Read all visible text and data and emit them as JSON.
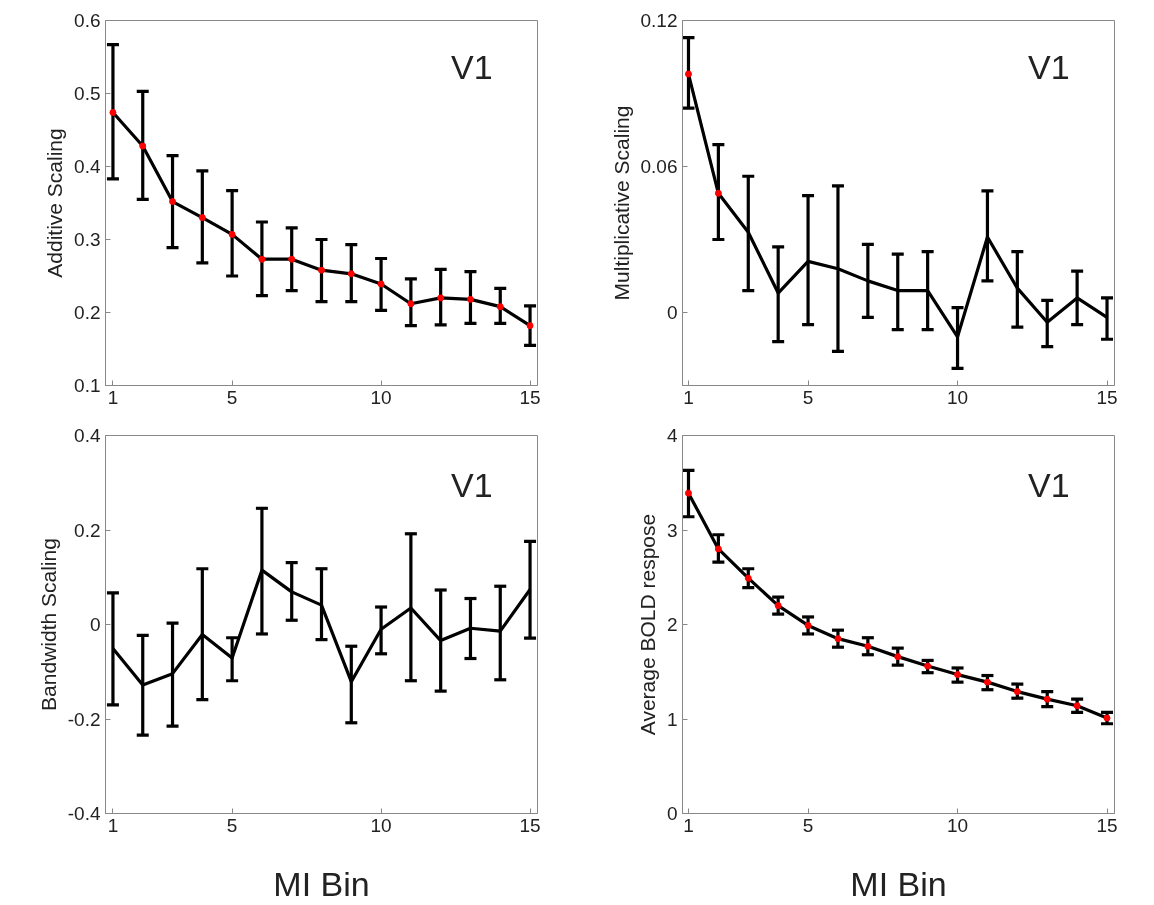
{
  "chart_data": [
    {
      "type": "line",
      "ylabel": "Additive Scaling",
      "annotations": [
        "V1"
      ],
      "x": [
        1,
        2,
        3,
        4,
        5,
        6,
        7,
        8,
        9,
        10,
        11,
        12,
        13,
        14,
        15
      ],
      "xlim": [
        0.75,
        15.25
      ],
      "xticks": [
        1,
        5,
        10,
        15
      ],
      "ylim": [
        0.1,
        0.6
      ],
      "yticks": [
        0.1,
        0.2,
        0.3,
        0.4,
        0.5,
        0.6
      ],
      "grid": false,
      "marker": "circle",
      "line_style": "solid",
      "series": [
        {
          "color": "#000000",
          "colors": [
            "#ff0000",
            "#ff0000",
            "#ff0000",
            "#ff0000",
            "#ff0000",
            "#ff0000",
            "#ff0000",
            "#ff0000",
            "#ff0000",
            "#ff0000",
            "#ff0000",
            "#ff0000",
            "#ff0000",
            "#ff0000",
            "#ff0000"
          ],
          "values": [
            0.474,
            0.428,
            0.352,
            0.33,
            0.307,
            0.273,
            0.273,
            0.258,
            0.253,
            0.239,
            0.212,
            0.22,
            0.218,
            0.208,
            0.182
          ],
          "errors": [
            [
              0.383,
              0.567
            ],
            [
              0.355,
              0.503
            ],
            [
              0.289,
              0.415
            ],
            [
              0.268,
              0.394
            ],
            [
              0.25,
              0.367
            ],
            [
              0.223,
              0.324
            ],
            [
              0.23,
              0.316
            ],
            [
              0.215,
              0.3
            ],
            [
              0.215,
              0.293
            ],
            [
              0.203,
              0.274
            ],
            [
              0.182,
              0.246
            ],
            [
              0.183,
              0.259
            ],
            [
              0.185,
              0.256
            ],
            [
              0.185,
              0.233
            ],
            [
              0.155,
              0.209
            ]
          ]
        }
      ]
    },
    {
      "type": "line",
      "ylabel": "Multiplicative Scaling",
      "annotations": [
        "V1"
      ],
      "x": [
        1,
        2,
        3,
        4,
        5,
        6,
        7,
        8,
        9,
        10,
        11,
        12,
        13,
        14,
        15
      ],
      "xlim": [
        0.8,
        15.25
      ],
      "xticks": [
        1,
        5,
        10,
        15
      ],
      "ylim": [
        -0.03,
        0.12
      ],
      "yticks": [
        0,
        0.06,
        0.12
      ],
      "grid": false,
      "marker": "none",
      "line_style": "solid",
      "series": [
        {
          "color": "#000000",
          "values": [
            0.098,
            0.049,
            0.033,
            0.008,
            0.021,
            0.018,
            0.013,
            0.009,
            0.009,
            -0.01,
            0.031,
            0.01,
            -0.004,
            0.006,
            -0.002
          ],
          "errors": [
            [
              0.084,
              0.113
            ],
            [
              0.03,
              0.069
            ],
            [
              0.009,
              0.056
            ],
            [
              -0.012,
              0.027
            ],
            [
              -0.005,
              0.048
            ],
            [
              -0.016,
              0.052
            ],
            [
              -0.002,
              0.028
            ],
            [
              -0.007,
              0.024
            ],
            [
              -0.007,
              0.025
            ],
            [
              -0.023,
              0.002
            ],
            [
              0.013,
              0.05
            ],
            [
              -0.006,
              0.025
            ],
            [
              -0.014,
              0.005
            ],
            [
              -0.005,
              0.017
            ],
            [
              -0.011,
              0.006
            ]
          ]
        },
        {
          "type": "scatter",
          "marker": "circle",
          "color": "#ff0000",
          "x": [
            1,
            2
          ],
          "values": [
            0.098,
            0.049
          ]
        }
      ]
    },
    {
      "type": "line",
      "xlabel": "MI Bin",
      "ylabel": "Bandwidth Scaling",
      "annotations": [
        "V1"
      ],
      "x": [
        1,
        2,
        3,
        4,
        5,
        6,
        7,
        8,
        9,
        10,
        11,
        12,
        13,
        14,
        15
      ],
      "xlim": [
        0.75,
        15.25
      ],
      "xticks": [
        1,
        5,
        10,
        15
      ],
      "ylim": [
        -0.4,
        0.4
      ],
      "yticks": [
        -0.4,
        -0.2,
        0,
        0.2,
        0.4
      ],
      "grid": false,
      "marker": "none",
      "line_style": "solid",
      "series": [
        {
          "color": "#000000",
          "values": [
            -0.051,
            -0.128,
            -0.104,
            -0.021,
            -0.071,
            0.115,
            0.069,
            0.041,
            -0.121,
            -0.01,
            0.035,
            -0.034,
            -0.008,
            -0.014,
            0.074
          ],
          "errors": [
            [
              -0.17,
              0.067
            ],
            [
              -0.234,
              -0.023
            ],
            [
              -0.215,
              0.003
            ],
            [
              -0.159,
              0.118
            ],
            [
              -0.119,
              -0.028
            ],
            [
              -0.02,
              0.246
            ],
            [
              0.009,
              0.131
            ],
            [
              -0.032,
              0.118
            ],
            [
              -0.208,
              -0.046
            ],
            [
              -0.062,
              0.037
            ],
            [
              -0.119,
              0.192
            ],
            [
              -0.141,
              0.073
            ],
            [
              -0.072,
              0.055
            ],
            [
              -0.117,
              0.081
            ],
            [
              -0.029,
              0.176
            ]
          ]
        }
      ]
    },
    {
      "type": "line",
      "xlabel": "MI Bin",
      "ylabel": "Average BOLD respose",
      "annotations": [
        "V1"
      ],
      "x": [
        1,
        2,
        3,
        4,
        5,
        6,
        7,
        8,
        9,
        10,
        11,
        12,
        13,
        14,
        15
      ],
      "xlim": [
        0.8,
        15.25
      ],
      "xticks": [
        1,
        5,
        10,
        15
      ],
      "ylim": [
        0,
        4
      ],
      "yticks": [
        0,
        1,
        2,
        3,
        4
      ],
      "grid": false,
      "marker": "circle",
      "line_style": "solid",
      "series": [
        {
          "color": "#000000",
          "colors": [
            "#ff0000",
            "#ff0000",
            "#ff0000",
            "#ff0000",
            "#ff0000",
            "#ff0000",
            "#ff0000",
            "#ff0000",
            "#ff0000",
            "#ff0000",
            "#ff0000",
            "#ff0000",
            "#ff0000",
            "#ff0000",
            "#ff0000"
          ],
          "values": [
            3.39,
            2.8,
            2.49,
            2.2,
            1.99,
            1.85,
            1.77,
            1.66,
            1.56,
            1.47,
            1.39,
            1.29,
            1.21,
            1.14,
            1.01
          ],
          "errors": [
            [
              3.14,
              3.63
            ],
            [
              2.66,
              2.95
            ],
            [
              2.39,
              2.59
            ],
            [
              2.11,
              2.29
            ],
            [
              1.9,
              2.08
            ],
            [
              1.76,
              1.94
            ],
            [
              1.68,
              1.86
            ],
            [
              1.57,
              1.75
            ],
            [
              1.49,
              1.62
            ],
            [
              1.39,
              1.54
            ],
            [
              1.31,
              1.46
            ],
            [
              1.22,
              1.37
            ],
            [
              1.13,
              1.29
            ],
            [
              1.07,
              1.21
            ],
            [
              0.95,
              1.07
            ]
          ]
        }
      ]
    }
  ]
}
